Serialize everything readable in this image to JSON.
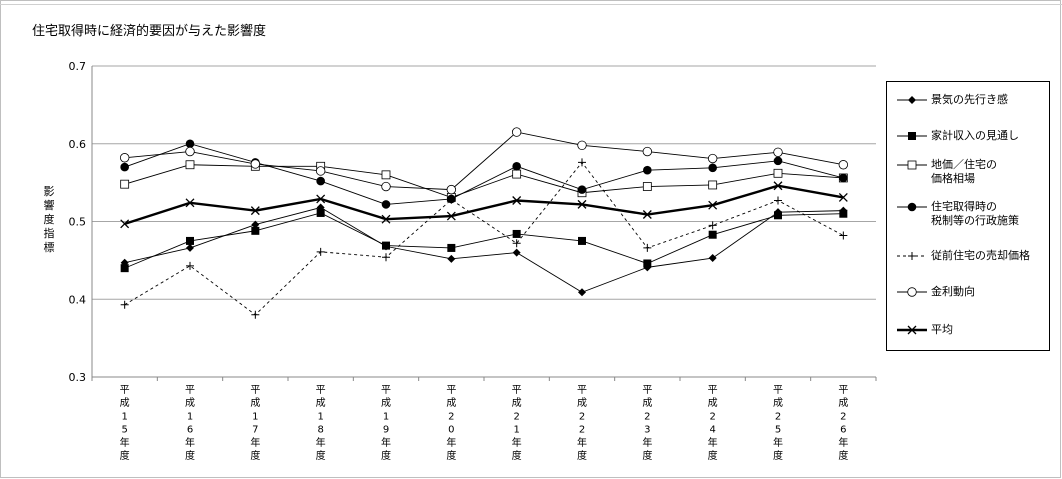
{
  "chart_data": {
    "type": "line",
    "title": "住宅取得時に経済的要因が与えた影響度",
    "ylabel": "影響度指標",
    "ylim": [
      0.3,
      0.7
    ],
    "yticks": [
      "0.3",
      "0.4",
      "0.5",
      "0.6",
      "0.7"
    ],
    "grid": true,
    "legend_position": "right",
    "categories": [
      "平成15年度",
      "平成16年度",
      "平成17年度",
      "平成18年度",
      "平成19年度",
      "平成20年度",
      "平成21年度",
      "平成22年度",
      "平成23年度",
      "平成24年度",
      "平成25年度",
      "平成26年度"
    ],
    "series": [
      {
        "name": "景気の先行き感",
        "marker": "diamond",
        "values": [
          0.447,
          0.466,
          0.496,
          0.518,
          0.468,
          0.452,
          0.46,
          0.409,
          0.441,
          0.453,
          0.512,
          0.514
        ]
      },
      {
        "name": "家計収入の見通し",
        "marker": "square-filled",
        "values": [
          0.44,
          0.475,
          0.488,
          0.511,
          0.469,
          0.466,
          0.484,
          0.475,
          0.446,
          0.483,
          0.508,
          0.51
        ]
      },
      {
        "name": "地価／住宅の\n価格相場",
        "marker": "square-open",
        "values": [
          0.548,
          0.573,
          0.571,
          0.571,
          0.56,
          0.531,
          0.561,
          0.537,
          0.545,
          0.547,
          0.562,
          0.556
        ]
      },
      {
        "name": "住宅取得時の\n税制等の行政施策",
        "marker": "circle-filled",
        "values": [
          0.57,
          0.6,
          0.576,
          0.552,
          0.522,
          0.529,
          0.571,
          0.541,
          0.566,
          0.569,
          0.578,
          0.556
        ]
      },
      {
        "name": "従前住宅の売却価格",
        "marker": "plus",
        "dashed": true,
        "values": [
          0.393,
          0.443,
          0.38,
          0.461,
          0.454,
          0.528,
          0.472,
          0.576,
          0.466,
          0.495,
          0.527,
          0.482
        ]
      },
      {
        "name": "金利動向",
        "marker": "circle-open",
        "values": [
          0.582,
          0.59,
          0.574,
          0.565,
          0.545,
          0.541,
          0.615,
          0.598,
          0.59,
          0.581,
          0.589,
          0.573
        ]
      },
      {
        "name": "平均",
        "marker": "x",
        "bold": true,
        "values": [
          0.497,
          0.524,
          0.514,
          0.529,
          0.503,
          0.507,
          0.527,
          0.522,
          0.509,
          0.521,
          0.546,
          0.531
        ]
      }
    ]
  }
}
